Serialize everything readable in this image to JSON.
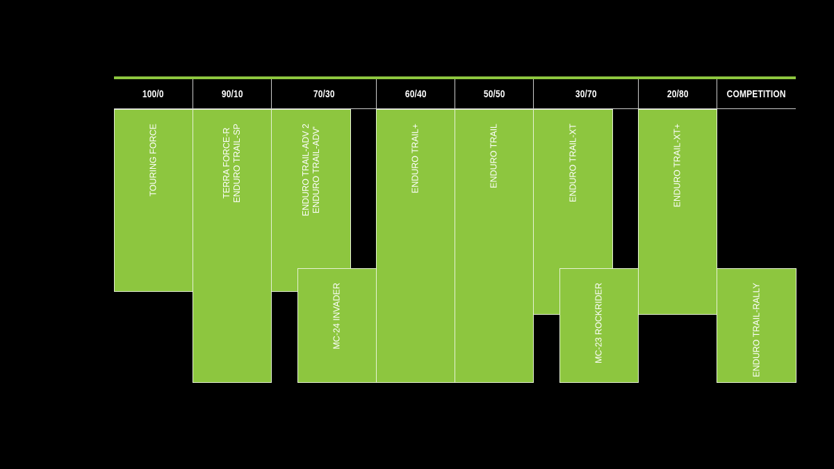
{
  "colors": {
    "accent": "#8dc63f",
    "background": "#000000",
    "text": "#ffffff"
  },
  "headers": [
    "100/0",
    "90/10",
    "70/30",
    "60/40",
    "50/50",
    "30/70",
    "20/80",
    "COMPETITION"
  ],
  "tires": [
    {
      "label": "TOURING FORCE"
    },
    {
      "label": "TERRA FORCE-R\nENDURO TRAIL-SP"
    },
    {
      "label": "ENDURO TRAIL-ADV 2\nENDURO TRAIL-ADV'"
    },
    {
      "label": "MC-24 INVADER"
    },
    {
      "label": "ENDURO TRAIL+"
    },
    {
      "label": "ENDURO TRAIL"
    },
    {
      "label": "ENDURO TRAIL-XT"
    },
    {
      "label": "MC-23 ROCKRIDER"
    },
    {
      "label": "ENDURO TRAIL-XT+"
    },
    {
      "label": "ENDURO TRAIL-RALLY"
    }
  ]
}
